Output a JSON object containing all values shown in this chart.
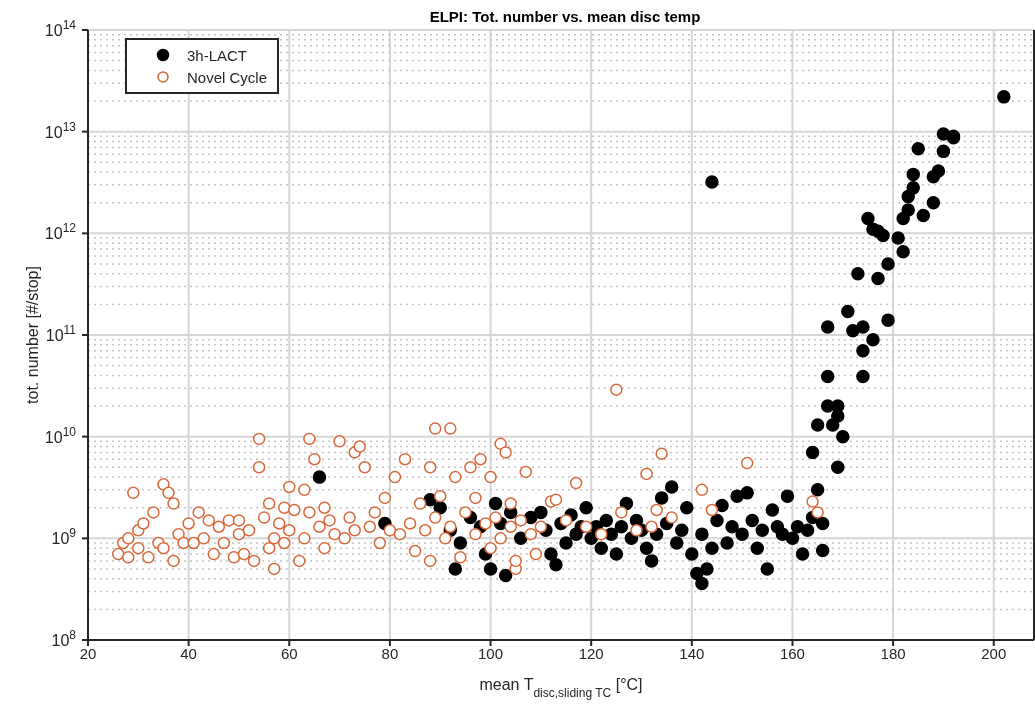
{
  "chart_data": {
    "type": "scatter",
    "title": "ELPI: Tot. number vs. mean disc temp",
    "xlabel": "mean T$_{disc,sliding TC}$ [°C]",
    "ylabel": "tot. number [#/stop]",
    "xlim": [
      20,
      208
    ],
    "xticks": [
      20,
      40,
      60,
      80,
      100,
      120,
      140,
      160,
      180,
      200
    ],
    "ylim": [
      100000000,
      100000000000000
    ],
    "yticks": [
      {
        "value": 100000000,
        "label": "10$^{8}$"
      },
      {
        "value": 1000000000,
        "label": "10$^{9}$"
      },
      {
        "value": 10000000000,
        "label": "10$^{10}$"
      },
      {
        "value": 100000000000,
        "label": "10$^{11}$"
      },
      {
        "value": 1000000000000,
        "label": "10$^{12}$"
      },
      {
        "value": 10000000000000,
        "label": "10$^{13}$"
      },
      {
        "value": 100000000000000,
        "label": "10$^{14}$"
      }
    ],
    "log": "y",
    "grid": true,
    "legend": "top left",
    "marker": "circle",
    "series": [
      {
        "name": "3h-LACT",
        "color": "#000000",
        "x": [
          66,
          79,
          88,
          90,
          92,
          93,
          94,
          96,
          98,
          99,
          100,
          101,
          102,
          103,
          104,
          106,
          108,
          110,
          111,
          112,
          113,
          114,
          115,
          116,
          117,
          118,
          119,
          120,
          121,
          122,
          123,
          124,
          125,
          126,
          127,
          128,
          129,
          130,
          131,
          132,
          133,
          134,
          135,
          136,
          137,
          138,
          139,
          140,
          141,
          142,
          142,
          143,
          144,
          144,
          145,
          146,
          147,
          148,
          149,
          150,
          151,
          152,
          153,
          154,
          155,
          156,
          157,
          158,
          159,
          160,
          161,
          162,
          163,
          164,
          164,
          165,
          165,
          166,
          166,
          167,
          167,
          167,
          168,
          169,
          169,
          169,
          170,
          171,
          172,
          173,
          174,
          174,
          174,
          175,
          176,
          176,
          177,
          177,
          178,
          179,
          179,
          181,
          182,
          182,
          183,
          183,
          184,
          184,
          185,
          186,
          188,
          188,
          189,
          190,
          190,
          192,
          192,
          202
        ],
        "values": [
          4000000000.0,
          1400000000.0,
          2400000000.0,
          2000000000.0,
          1200000000.0,
          500000000.0,
          900000000.0,
          1600000000.0,
          1300000000.0,
          700000000.0,
          500000000.0,
          2200000000.0,
          1400000000.0,
          430000000.0,
          1800000000.0,
          1000000000.0,
          1600000000.0,
          1800000000.0,
          1200000000.0,
          700000000.0,
          550000000.0,
          1400000000.0,
          900000000.0,
          1700000000.0,
          1100000000.0,
          1300000000.0,
          2000000000.0,
          1000000000.0,
          1300000000.0,
          800000000.0,
          1500000000.0,
          1100000000.0,
          700000000.0,
          1300000000.0,
          2200000000.0,
          1000000000.0,
          1500000000.0,
          1200000000.0,
          800000000.0,
          600000000.0,
          1100000000.0,
          2500000000.0,
          1400000000.0,
          3200000000.0,
          900000000.0,
          1200000000.0,
          2000000000.0,
          700000000.0,
          450000000.0,
          360000000.0,
          1100000000.0,
          500000000.0,
          3200000000000.0,
          800000000.0,
          1500000000.0,
          2100000000.0,
          900000000.0,
          1300000000.0,
          2600000000.0,
          1100000000.0,
          2800000000.0,
          1500000000.0,
          800000000.0,
          1200000000.0,
          500000000.0,
          1900000000.0,
          1300000000.0,
          1100000000.0,
          2600000000.0,
          1000000000.0,
          1300000000.0,
          700000000.0,
          1200000000.0,
          1600000000.0,
          7000000000.0,
          3000000000.0,
          13000000000.0,
          1400000000.0,
          760000000.0,
          120000000000.0,
          20000000000.0,
          39000000000.0,
          13000000000.0,
          20000000000.0,
          16000000000.0,
          5000000000.0,
          10000000000.0,
          170000000000.0,
          110000000000.0,
          400000000000.0,
          39000000000.0,
          70000000000.0,
          120000000000.0,
          1400000000000.0,
          1100000000000.0,
          90000000000.0,
          360000000000.0,
          1050000000000.0,
          950000000000.0,
          500000000000.0,
          140000000000.0,
          900000000000.0,
          1400000000000.0,
          660000000000.0,
          1700000000000.0,
          2300000000000.0,
          2800000000000.0,
          3800000000000.0,
          6800000000000.0,
          1500000000000.0,
          2000000000000.0,
          3600000000000.0,
          4100000000000.0,
          6400000000000.0,
          9500000000000.0,
          8700000000000.0,
          9000000000000.0,
          22000000000000.0
        ]
      },
      {
        "name": "Novel Cycle",
        "color": "#d8683a",
        "x": [
          26,
          27,
          28,
          28,
          29,
          30,
          30,
          31,
          32,
          33,
          34,
          35,
          35,
          36,
          37,
          37,
          38,
          39,
          40,
          41,
          42,
          43,
          44,
          45,
          46,
          47,
          48,
          49,
          50,
          50,
          51,
          52,
          53,
          54,
          54,
          55,
          56,
          56,
          57,
          57,
          58,
          59,
          59,
          60,
          60,
          61,
          62,
          63,
          63,
          64,
          64,
          65,
          66,
          67,
          67,
          68,
          69,
          70,
          71,
          72,
          73,
          73,
          74,
          75,
          76,
          77,
          78,
          79,
          80,
          81,
          82,
          83,
          84,
          85,
          86,
          87,
          88,
          88,
          89,
          89,
          90,
          91,
          92,
          92,
          93,
          94,
          95,
          96,
          97,
          97,
          98,
          99,
          100,
          100,
          101,
          102,
          102,
          103,
          104,
          104,
          105,
          105,
          106,
          107,
          108,
          109,
          110,
          112,
          113,
          115,
          117,
          119,
          122,
          125,
          126,
          129,
          131,
          132,
          133,
          134,
          136,
          142,
          144,
          151,
          164,
          165
        ],
        "values": [
          700000000.0,
          900000000.0,
          650000000.0,
          1000000000.0,
          2800000000.0,
          1200000000.0,
          800000000.0,
          1400000000.0,
          650000000.0,
          1800000000.0,
          900000000.0,
          3400000000.0,
          800000000.0,
          2800000000.0,
          2200000000.0,
          600000000.0,
          1100000000.0,
          900000000.0,
          1400000000.0,
          900000000.0,
          1800000000.0,
          1000000000.0,
          1500000000.0,
          700000000.0,
          1300000000.0,
          900000000.0,
          1500000000.0,
          650000000.0,
          1100000000.0,
          1500000000.0,
          700000000.0,
          1200000000.0,
          600000000.0,
          9500000000.0,
          5000000000.0,
          1600000000.0,
          2200000000.0,
          800000000.0,
          1000000000.0,
          500000000.0,
          1400000000.0,
          2000000000.0,
          900000000.0,
          3200000000.0,
          1200000000.0,
          1900000000.0,
          600000000.0,
          1000000000.0,
          3000000000.0,
          9500000000.0,
          1800000000.0,
          6000000000.0,
          1300000000.0,
          2000000000.0,
          800000000.0,
          1500000000.0,
          1100000000.0,
          9000000000.0,
          1000000000.0,
          1600000000.0,
          7000000000.0,
          1200000000.0,
          8000000000.0,
          5000000000.0,
          1300000000.0,
          1800000000.0,
          900000000.0,
          2500000000.0,
          1200000000.0,
          4000000000.0,
          1100000000.0,
          6000000000.0,
          1400000000.0,
          750000000.0,
          2200000000.0,
          1200000000.0,
          5000000000.0,
          600000000.0,
          12000000000.0,
          1600000000.0,
          2600000000.0,
          1000000000.0,
          12000000000.0,
          1300000000.0,
          4000000000.0,
          650000000.0,
          1800000000.0,
          5000000000.0,
          2500000000.0,
          1100000000.0,
          6000000000.0,
          1400000000.0,
          4000000000.0,
          800000000.0,
          1600000000.0,
          8500000000.0,
          1000000000.0,
          7000000000.0,
          1300000000.0,
          2200000000.0,
          500000000.0,
          600000000.0,
          1500000000.0,
          4500000000.0,
          1100000000.0,
          700000000.0,
          1300000000.0,
          2300000000.0,
          2400000000.0,
          1500000000.0,
          3500000000.0,
          1300000000.0,
          1100000000.0,
          29000000000.0,
          1800000000.0,
          1200000000.0,
          4300000000.0,
          1300000000.0,
          1900000000.0,
          6800000000.0,
          1600000000.0,
          3000000000.0,
          1900000000.0,
          5500000000.0,
          2300000000.0,
          1800000000.0
        ]
      }
    ]
  }
}
